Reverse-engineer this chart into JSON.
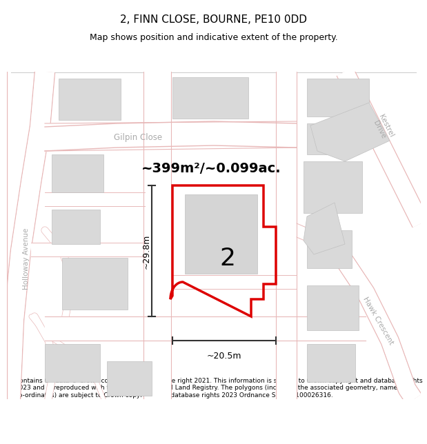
{
  "title": "2, FINN CLOSE, BOURNE, PE10 0DD",
  "subtitle": "Map shows position and indicative extent of the property.",
  "footer": "Contains OS data © Crown copyright and database right 2021. This information is subject to Crown copyright and database rights 2023 and is reproduced with the permission of HM Land Registry. The polygons (including the associated geometry, namely x, y co-ordinates) are subject to Crown copyright and database rights 2023 Ordnance Survey 100026316.",
  "area_label": "~399m²/~0.099ac.",
  "number_label": "2",
  "dim_h": "~29.8m",
  "dim_w": "~20.5m",
  "street_label_left": "Holloway Avenue",
  "street_label_top": "Gilpin Close",
  "street_label_right_top": "Kestrel\nDrive",
  "street_label_right_bottom": "Hawk Crescent",
  "red_color": "#dd0000",
  "map_bg": "#f5f4f2",
  "road_fill": "#ffffff",
  "road_line": "#e8b8b8",
  "building_fill": "#d9d9d9",
  "building_edge": "#c0c0c0",
  "dim_color": "#333333",
  "street_color": "#aaaaaa",
  "title_fontsize": 11,
  "subtitle_fontsize": 9,
  "footer_fontsize": 6.5
}
